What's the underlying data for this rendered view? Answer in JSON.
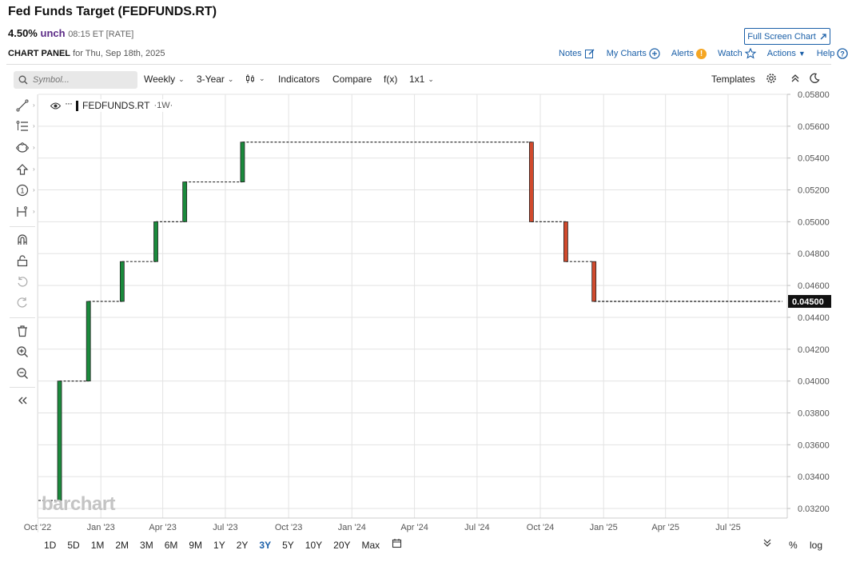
{
  "header": {
    "title": "Fed Funds Target (FEDFUNDS.RT)",
    "price": "4.50%",
    "change": "unch",
    "time": "08:15 ET [RATE]",
    "panel_label": "CHART PANEL",
    "panel_date": "for Thu, Sep 18th, 2025",
    "fullscreen_label": "Full Screen Chart"
  },
  "toplinks": {
    "notes": "Notes",
    "mycharts": "My Charts",
    "alerts": "Alerts",
    "alerts_badge": "!",
    "watch": "Watch",
    "actions": "Actions",
    "help": "Help"
  },
  "toolbar": {
    "search_placeholder": "Symbol...",
    "interval": "Weekly",
    "period": "3-Year",
    "indicators": "Indicators",
    "compare": "Compare",
    "fx": "f(x)",
    "layout": "1x1",
    "templates": "Templates"
  },
  "legend": {
    "symbol": "FEDFUNDS.RT",
    "interval": "·1W·"
  },
  "watermark": "barchart",
  "ranges": [
    "1D",
    "5D",
    "1M",
    "2M",
    "3M",
    "6M",
    "9M",
    "1Y",
    "2Y",
    "3Y",
    "5Y",
    "10Y",
    "20Y",
    "Max"
  ],
  "active_range": "3Y",
  "bottom_right": {
    "percent": "%",
    "log": "log"
  },
  "colors": {
    "up": "#1a8a3c",
    "down": "#d04a2d",
    "accent": "#1a5fa8"
  },
  "chart_data": {
    "type": "step-candlestick",
    "series_name": "FEDFUNDS.RT",
    "yticks": [
      "0.05800",
      "0.05600",
      "0.05400",
      "0.05200",
      "0.05000",
      "0.04800",
      "0.04600",
      "0.04400",
      "0.04200",
      "0.04000",
      "0.03800",
      "0.03600",
      "0.03400",
      "0.03200"
    ],
    "ylim": [
      0.0314,
      0.058
    ],
    "xticks": [
      "Oct '22",
      "Jan '23",
      "Apr '23",
      "Jul '23",
      "Oct '23",
      "Jan '24",
      "Apr '24",
      "Jul '24",
      "Oct '24",
      "Jan '25",
      "Apr '25",
      "Jul '25"
    ],
    "last_value": "0.04500",
    "steps": [
      {
        "date": "2022-09-21",
        "value": 0.0325
      },
      {
        "date": "2022-11-02",
        "value": 0.04
      },
      {
        "date": "2022-12-14",
        "value": 0.045
      },
      {
        "date": "2023-02-01",
        "value": 0.0475
      },
      {
        "date": "2023-03-22",
        "value": 0.05
      },
      {
        "date": "2023-05-03",
        "value": 0.0525
      },
      {
        "date": "2023-07-26",
        "value": 0.055
      },
      {
        "date": "2024-09-18",
        "value": 0.05
      },
      {
        "date": "2024-11-07",
        "value": 0.0475
      },
      {
        "date": "2024-12-18",
        "value": 0.045
      },
      {
        "date": "2025-09-18",
        "value": 0.045
      }
    ]
  }
}
